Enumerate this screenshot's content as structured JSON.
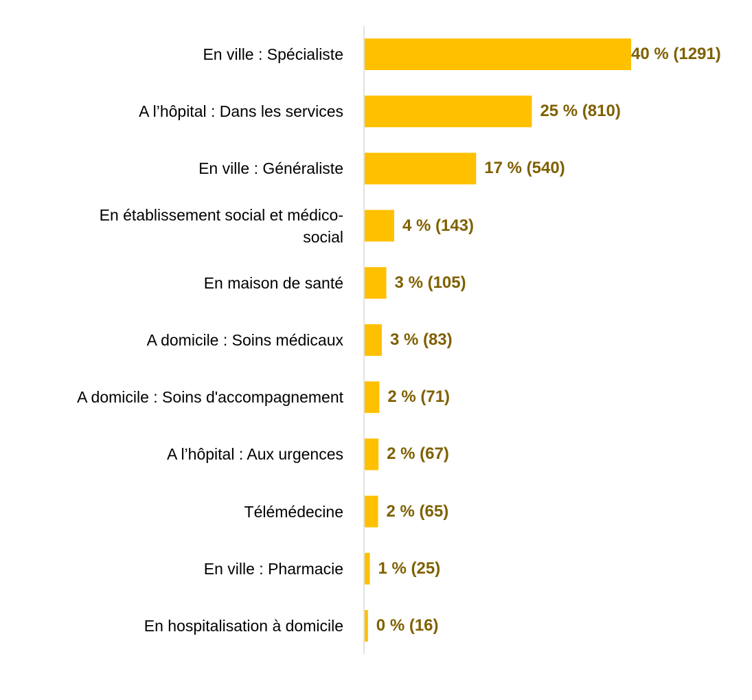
{
  "chart_data": {
    "type": "bar",
    "orientation": "horizontal",
    "categories": [
      "En ville : Spécialiste",
      "A l’hôpital : Dans les services",
      "En ville : Généraliste",
      "En établissement social et médico-\nsocial",
      "En maison de santé",
      "A domicile : Soins médicaux",
      "A domicile : Soins d'accompagnement",
      "A l’hôpital : Aux urgences",
      "Télémédecine",
      "En ville : Pharmacie",
      "En hospitalisation à domicile"
    ],
    "values": [
      1291,
      810,
      540,
      143,
      105,
      83,
      71,
      67,
      65,
      25,
      16
    ],
    "value_labels": [
      "40 % (1291)",
      "25 % (810)",
      "17 % (540)",
      "4 % (143)",
      "3 % (105)",
      "3 % (83)",
      "2 % (71)",
      "2 % (67)",
      "2 % (65)",
      "1 % (25)",
      "0 % (16)"
    ],
    "color": "#ffc000",
    "label_color": "#7f6000"
  }
}
